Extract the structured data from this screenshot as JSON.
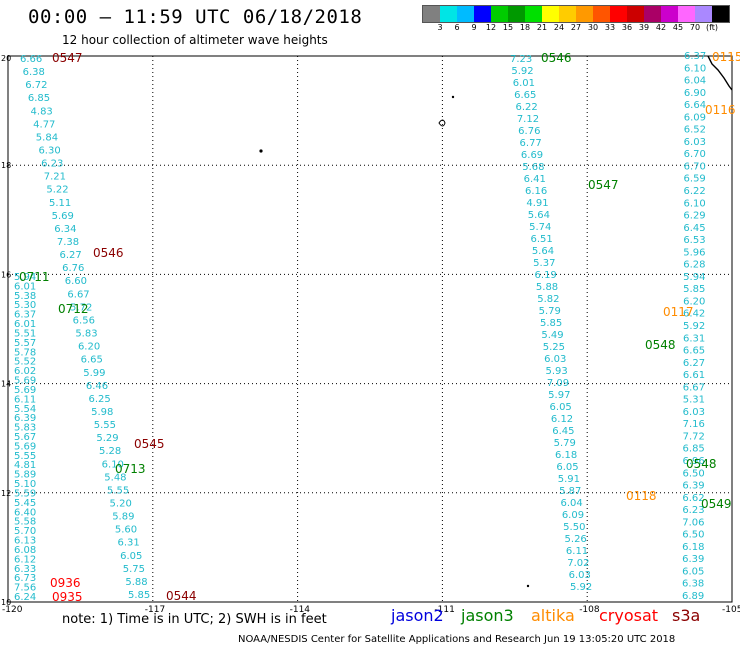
{
  "title": "00:00 – 11:59 UTC 06/18/2018",
  "subtitle": "12 hour collection of altimeter wave heights",
  "colorbar": {
    "colors": [
      "#808080",
      "#00e5e5",
      "#00bbff",
      "#0000ff",
      "#00cc00",
      "#009900",
      "#00e000",
      "#ffff00",
      "#ffcc00",
      "#ff9900",
      "#ff5500",
      "#ff0000",
      "#cc0000",
      "#aa0066",
      "#cc00cc",
      "#ff66ff",
      "#aa88ff",
      "#000000"
    ],
    "labels": [
      "3",
      "6",
      "9",
      "12",
      "15",
      "18",
      "21",
      "24",
      "27",
      "30",
      "33",
      "36",
      "39",
      "42",
      "45",
      "70",
      "(ft)"
    ]
  },
  "map": {
    "lon_range": [
      -120,
      -105
    ],
    "lat_range": [
      10,
      20
    ],
    "lon_ticks": [
      "-120",
      "-117",
      "-114",
      "-111",
      "-108",
      "-105"
    ],
    "lat_ticks": [
      "20",
      "18",
      "16",
      "14",
      "12",
      "10"
    ],
    "grid": "dotted",
    "coast": "top-right"
  },
  "track_labels": [
    {
      "text": "0547",
      "color": "#8b0000"
    },
    {
      "text": "0546",
      "color": "#8b0000"
    },
    {
      "text": "0545",
      "color": "#8b0000"
    },
    {
      "text": "0544",
      "color": "#8b0000"
    },
    {
      "text": "0936",
      "color": "#ff0000"
    },
    {
      "text": "0935",
      "color": "#ff0000"
    },
    {
      "text": "0711",
      "color": "#008000"
    },
    {
      "text": "0712",
      "color": "#008000"
    },
    {
      "text": "0713",
      "color": "#008000"
    },
    {
      "text": "0546",
      "color": "#008000"
    },
    {
      "text": "0547",
      "color": "#008000"
    },
    {
      "text": "0548",
      "color": "#008000"
    },
    {
      "text": "0548",
      "color": "#008000"
    },
    {
      "text": "0549",
      "color": "#008000"
    },
    {
      "text": "0116",
      "color": "#ff8c00"
    },
    {
      "text": "0117",
      "color": "#ff8c00"
    },
    {
      "text": "0118",
      "color": "#ff8c00"
    },
    {
      "text": "0115",
      "color": "#ff8c00"
    }
  ],
  "wave_labels": {
    "track_a": [
      "6.66",
      "6.38",
      "6.72",
      "6.85",
      "4.83",
      "4.77",
      "5.84",
      "6.30",
      "6.23",
      "7.21",
      "5.22",
      "5.11",
      "5.69",
      "6.34",
      "7.38",
      "6.27",
      "6.76",
      "6.60",
      "6.67",
      "5.72",
      "6.56",
      "5.83",
      "6.20",
      "6.65",
      "5.99",
      "6.46",
      "6.25",
      "5.98",
      "5.55",
      "5.29",
      "5.28",
      "6.10",
      "5.48",
      "5.55",
      "5.20",
      "5.89",
      "5.60",
      "6.31",
      "6.05",
      "5.75",
      "5.88",
      "5.85"
    ],
    "track_b": [
      "5.94",
      "6.01",
      "5.38",
      "5.30",
      "6.37",
      "6.01",
      "5.51",
      "5.57",
      "5.78",
      "5.52",
      "6.02",
      "5.69",
      "5.69",
      "6.11",
      "5.54",
      "6.39",
      "5.83",
      "5.67",
      "5.69",
      "5.55",
      "4.81",
      "5.89",
      "5.10",
      "5.59",
      "5.45",
      "6.40",
      "5.58",
      "5.70",
      "6.13",
      "6.08",
      "6.12",
      "6.33",
      "6.73",
      "7.56",
      "6.24"
    ],
    "track_c": [
      "7.23",
      "5.92",
      "6.01",
      "6.65",
      "6.22",
      "7.12",
      "6.76",
      "6.77",
      "6.69",
      "5.68",
      "6.41",
      "6.16",
      "4.91",
      "5.64",
      "5.74",
      "6.51",
      "5.64",
      "5.37",
      "6.19",
      "5.88",
      "5.82",
      "5.79",
      "5.85",
      "5.49",
      "5.25",
      "6.03",
      "5.93",
      "7.09",
      "5.97",
      "6.05",
      "6.12",
      "6.45",
      "5.79",
      "6.18",
      "6.05",
      "5.91",
      "5.87",
      "6.04",
      "6.09",
      "5.50",
      "5.26",
      "6.11",
      "7.02",
      "6.03",
      "5.92"
    ],
    "track_d": [
      "6.37",
      "6.10",
      "6.04",
      "6.90",
      "6.64",
      "6.09",
      "6.52",
      "6.03",
      "6.70",
      "6.70",
      "6.59",
      "6.22",
      "6.10",
      "6.29",
      "6.45",
      "6.53",
      "5.96",
      "6.28",
      "5.94",
      "5.85",
      "6.20",
      "6.42",
      "5.92",
      "6.31",
      "6.65",
      "6.27",
      "6.61",
      "6.67",
      "5.31",
      "6.03",
      "7.16",
      "7.72",
      "6.85",
      "6.96",
      "6.50",
      "6.39",
      "6.62",
      "6.23",
      "7.06",
      "6.50",
      "6.18",
      "6.39",
      "6.05",
      "6.38",
      "6.89"
    ]
  },
  "note": "note: 1) Time is in UTC; 2) SWH is in feet",
  "legend": [
    {
      "text": "jason2",
      "color": "#0000dd"
    },
    {
      "text": "jason3",
      "color": "#008000"
    },
    {
      "text": "altika",
      "color": "#ff8c00"
    },
    {
      "text": "cryosat",
      "color": "#ff0000"
    },
    {
      "text": "s3a",
      "color": "#8b0000"
    }
  ],
  "footer": "NOAA/NESDIS Center for Satellite Applications and Research    Jun 19 13:05:20 UTC 2018"
}
